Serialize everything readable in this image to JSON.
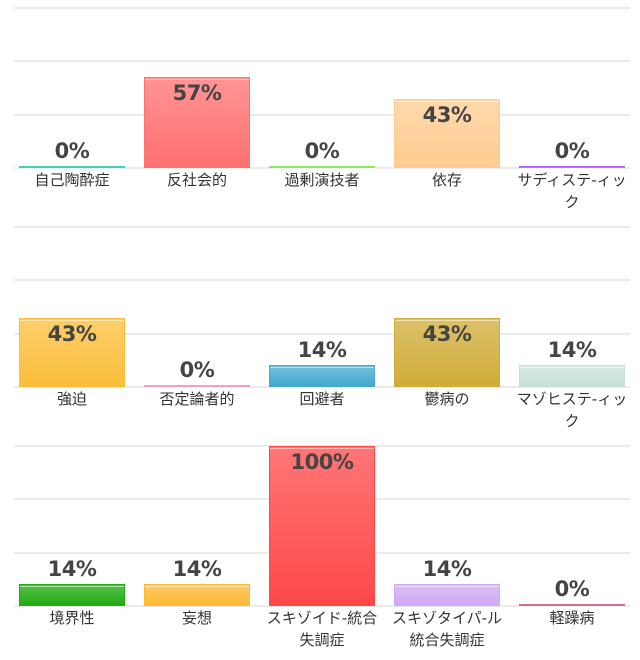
{
  "chart_data": {
    "type": "bar",
    "ylim": [
      0,
      100
    ],
    "grid": true,
    "value_suffix": "%",
    "rows": [
      {
        "categories": [
          "自己陶酔症",
          "反社会的",
          "過剰演技者",
          "依存",
          "サディステ-ィック"
        ],
        "values": [
          0,
          57,
          0,
          43,
          0
        ],
        "colors": [
          "#40d0c0",
          "#ff7070",
          "#88ee55",
          "#ffcc90",
          "#bb66ff"
        ]
      },
      {
        "categories": [
          "強迫",
          "否定論者的",
          "回避者",
          "鬱病の",
          "マゾヒステ-ィック"
        ],
        "values": [
          43,
          0,
          14,
          43,
          14
        ],
        "colors": [
          "#fbbd3a",
          "#f0a0c8",
          "#45a8d0",
          "#d0ac38",
          "#c8e0d8"
        ]
      },
      {
        "categories": [
          "境界性",
          "妄想",
          "スキゾイド-統合失調症",
          "スキゾタイパ-ル統合失調症",
          "軽躁病"
        ],
        "values": [
          14,
          14,
          100,
          14,
          0
        ],
        "colors": [
          "#22aa11",
          "#ffb833",
          "#ff4848",
          "#d0a8f4",
          "#d07090"
        ]
      }
    ]
  }
}
